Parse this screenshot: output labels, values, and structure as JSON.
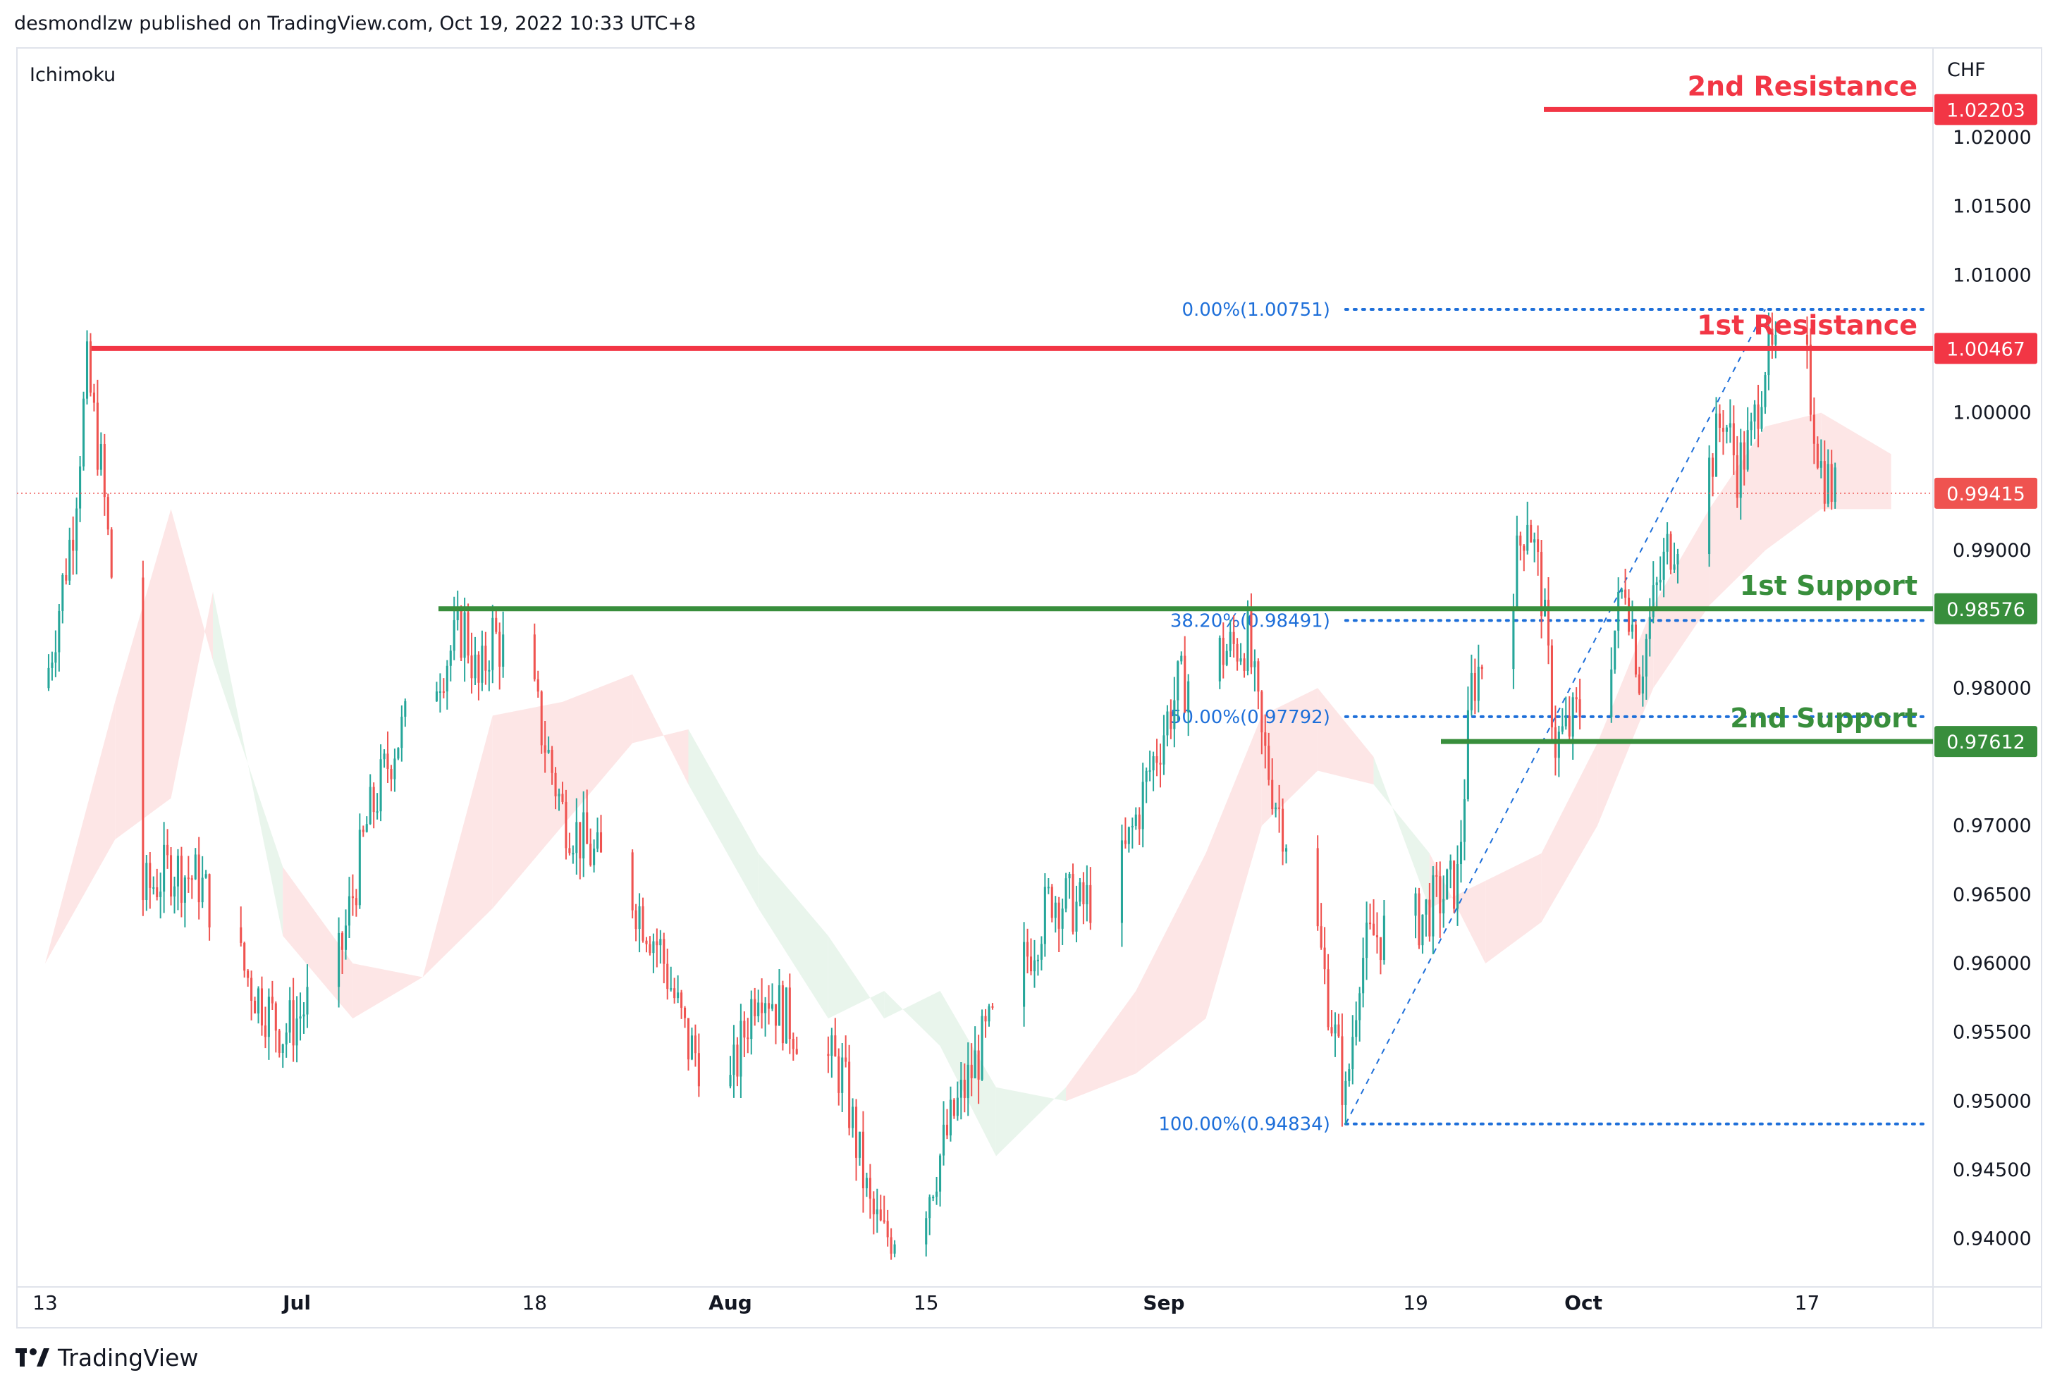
{
  "header": {
    "attribution": "desmondlzw published on TradingView.com, Oct 19, 2022 10:33 UTC+8"
  },
  "indicator_label": "Ichimoku",
  "currency": "CHF",
  "footer": {
    "brand": "TradingView"
  },
  "colors": {
    "up": "#26a69a",
    "down": "#ef5350",
    "resistance": "#f23645",
    "support": "#388e3c",
    "fib": "#1e6fd9",
    "cloud_bull": "#e9f5ec",
    "cloud_bear": "#fde6e6",
    "axis_text": "#131722"
  },
  "chart_data": {
    "type": "candlestick",
    "symbol_quote": "CHF",
    "y_axis": {
      "range": [
        0.9365,
        1.0265
      ],
      "ticks": [
        "0.94000",
        "0.94500",
        "0.95000",
        "0.95500",
        "0.96000",
        "0.96500",
        "0.97000",
        "0.97500",
        "0.98000",
        "0.98500",
        "0.99000",
        "0.99500",
        "1.00000",
        "1.00500",
        "1.01000",
        "1.01500",
        "1.02000"
      ]
    },
    "x_axis": {
      "range": [
        "2022-06-13",
        "2022-10-26"
      ],
      "ticks": [
        {
          "label": "13",
          "date": "2022-06-13"
        },
        {
          "label": "Jul",
          "date": "2022-07-01"
        },
        {
          "label": "18",
          "date": "2022-07-18"
        },
        {
          "label": "Aug",
          "date": "2022-08-01"
        },
        {
          "label": "15",
          "date": "2022-08-15"
        },
        {
          "label": "Sep",
          "date": "2022-09-01"
        },
        {
          "label": "19",
          "date": "2022-09-19"
        },
        {
          "label": "Oct",
          "date": "2022-10-01"
        },
        {
          "label": "17",
          "date": "2022-10-17"
        }
      ]
    },
    "price_path": [
      [
        "2022-06-13",
        0.98
      ],
      [
        "2022-06-15",
        0.992
      ],
      [
        "2022-06-16",
        1.003
      ],
      [
        "2022-06-17",
        0.996
      ],
      [
        "2022-06-20",
        0.965
      ],
      [
        "2022-06-22",
        0.967
      ],
      [
        "2022-06-24",
        0.966
      ],
      [
        "2022-06-28",
        0.958
      ],
      [
        "2022-06-30",
        0.955
      ],
      [
        "2022-07-01",
        0.956
      ],
      [
        "2022-07-04",
        0.96
      ],
      [
        "2022-07-06",
        0.97
      ],
      [
        "2022-07-08",
        0.976
      ],
      [
        "2022-07-11",
        0.981
      ],
      [
        "2022-07-13",
        0.9845
      ],
      [
        "2022-07-14",
        0.98
      ],
      [
        "2022-07-15",
        0.984
      ],
      [
        "2022-07-18",
        0.979
      ],
      [
        "2022-07-20",
        0.971
      ],
      [
        "2022-07-22",
        0.968
      ],
      [
        "2022-07-25",
        0.965
      ],
      [
        "2022-07-27",
        0.961
      ],
      [
        "2022-07-29",
        0.954
      ],
      [
        "2022-08-01",
        0.951
      ],
      [
        "2022-08-03",
        0.959
      ],
      [
        "2022-08-05",
        0.956
      ],
      [
        "2022-08-09",
        0.952
      ],
      [
        "2022-08-11",
        0.942
      ],
      [
        "2022-08-12",
        0.94
      ],
      [
        "2022-08-15",
        0.943
      ],
      [
        "2022-08-17",
        0.949
      ],
      [
        "2022-08-19",
        0.954
      ],
      [
        "2022-08-22",
        0.96
      ],
      [
        "2022-08-24",
        0.965
      ],
      [
        "2022-08-26",
        0.964
      ],
      [
        "2022-08-29",
        0.967
      ],
      [
        "2022-08-31",
        0.974
      ],
      [
        "2022-09-02",
        0.98
      ],
      [
        "2022-09-05",
        0.9825
      ],
      [
        "2022-09-07",
        0.9835
      ],
      [
        "2022-09-08",
        0.976
      ],
      [
        "2022-09-09",
        0.972
      ],
      [
        "2022-09-12",
        0.962
      ],
      [
        "2022-09-13",
        0.956
      ],
      [
        "2022-09-14",
        0.95
      ],
      [
        "2022-09-15",
        0.96
      ],
      [
        "2022-09-16",
        0.962
      ],
      [
        "2022-09-19",
        0.963
      ],
      [
        "2022-09-21",
        0.965
      ],
      [
        "2022-09-22",
        0.966
      ],
      [
        "2022-09-23",
        0.98
      ],
      [
        "2022-09-26",
        0.988
      ],
      [
        "2022-09-27",
        0.993
      ],
      [
        "2022-09-28",
        0.987
      ],
      [
        "2022-09-29",
        0.976
      ],
      [
        "2022-09-30",
        0.977
      ],
      [
        "2022-10-03",
        0.983
      ],
      [
        "2022-10-04",
        0.988
      ],
      [
        "2022-10-05",
        0.981
      ],
      [
        "2022-10-06",
        0.986
      ],
      [
        "2022-10-07",
        0.99
      ],
      [
        "2022-10-10",
        0.996
      ],
      [
        "2022-10-11",
        1.0
      ],
      [
        "2022-10-12",
        0.996
      ],
      [
        "2022-10-13",
        0.998
      ],
      [
        "2022-10-14",
        1.004
      ],
      [
        "2022-10-17",
        1.003
      ],
      [
        "2022-10-18",
        0.996
      ],
      [
        "2022-10-19",
        0.99415
      ]
    ],
    "horizontal_levels": [
      {
        "label": "2nd Resistance",
        "value": 1.02203,
        "price_tag": "1.02203",
        "kind": "resistance"
      },
      {
        "label": "1st Resistance",
        "value": 1.00467,
        "price_tag": "1.00467",
        "kind": "resistance"
      },
      {
        "label": "1st Support",
        "value": 0.98576,
        "price_tag": "0.98576",
        "kind": "support"
      },
      {
        "label": "2nd Support",
        "value": 0.97612,
        "price_tag": "0.97612",
        "kind": "support"
      }
    ],
    "current_price": {
      "value": 0.99415,
      "price_tag": "0.99415"
    },
    "fibonacci": [
      {
        "label": "0.00%(1.00751)",
        "value": 1.00751
      },
      {
        "label": "38.20%(0.98491)",
        "value": 0.98491
      },
      {
        "label": "50.00%(0.97792)",
        "value": 0.97792
      },
      {
        "label": "100.00%(0.94834)",
        "value": 0.94834
      }
    ],
    "fib_trend_start": {
      "date": "2022-09-14",
      "value": 0.94834
    },
    "fib_trend_end": {
      "date": "2022-10-14",
      "value": 1.00751
    },
    "ichimoku_cloud": [
      [
        "2022-06-13",
        0.96,
        0.96
      ],
      [
        "2022-06-18",
        0.969,
        0.979
      ],
      [
        "2022-06-22",
        0.972,
        0.993
      ],
      [
        "2022-06-25",
        0.987,
        0.982
      ],
      [
        "2022-06-30",
        0.962,
        0.967
      ],
      [
        "2022-07-05",
        0.956,
        0.96
      ],
      [
        "2022-07-10",
        0.959,
        0.959
      ],
      [
        "2022-07-15",
        0.964,
        0.978
      ],
      [
        "2022-07-20",
        0.97,
        0.979
      ],
      [
        "2022-07-25",
        0.976,
        0.981
      ],
      [
        "2022-07-29",
        0.977,
        0.973
      ],
      [
        "2022-08-03",
        0.968,
        0.964
      ],
      [
        "2022-08-08",
        0.962,
        0.956
      ],
      [
        "2022-08-12",
        0.956,
        0.958
      ],
      [
        "2022-08-16",
        0.958,
        0.954
      ],
      [
        "2022-08-20",
        0.951,
        0.946
      ],
      [
        "2022-08-25",
        0.95,
        0.951
      ],
      [
        "2022-08-30",
        0.952,
        0.958
      ],
      [
        "2022-09-04",
        0.956,
        0.968
      ],
      [
        "2022-09-08",
        0.97,
        0.978
      ],
      [
        "2022-09-12",
        0.974,
        0.98
      ],
      [
        "2022-09-16",
        0.973,
        0.975
      ],
      [
        "2022-09-20",
        0.968,
        0.964
      ],
      [
        "2022-09-24",
        0.96,
        0.966
      ],
      [
        "2022-09-28",
        0.963,
        0.968
      ],
      [
        "2022-10-02",
        0.97,
        0.976
      ],
      [
        "2022-10-06",
        0.98,
        0.986
      ],
      [
        "2022-10-10",
        0.986,
        0.993
      ],
      [
        "2022-10-14",
        0.99,
        0.999
      ],
      [
        "2022-10-18",
        0.993,
        1.0
      ],
      [
        "2022-10-23",
        0.993,
        0.997
      ]
    ]
  }
}
